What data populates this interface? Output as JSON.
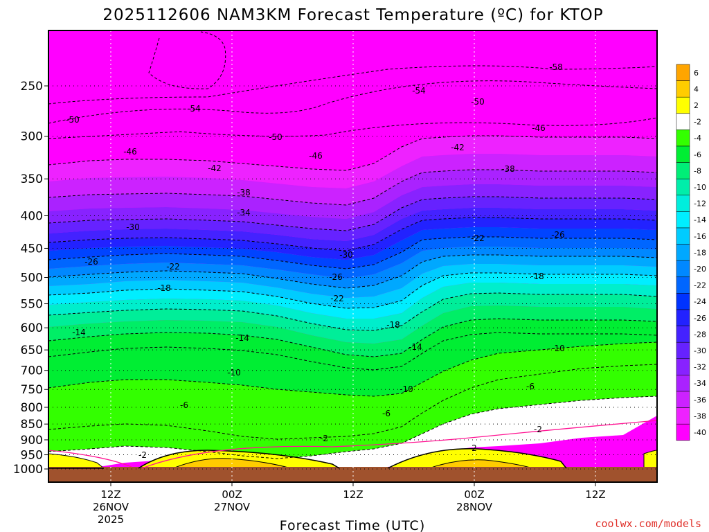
{
  "chart_data": {
    "type": "heatmap",
    "title": "2025112606 NAM3KM Forecast Temperature (ºC) for KTOP",
    "xlabel": "Forecast Time (UTC)",
    "ylabel": "",
    "credit": "coolwx.com/models",
    "y_scale": "log",
    "ylim": [
      1000,
      200
    ],
    "y_ticks": [
      "250",
      "300",
      "350",
      "400",
      "450",
      "500",
      "550",
      "600",
      "650",
      "700",
      "750",
      "800",
      "850",
      "900",
      "950",
      "1000"
    ],
    "x_ticks": [
      {
        "lines": [
          "12Z",
          "26NOV",
          "2025"
        ],
        "hours": 6
      },
      {
        "lines": [
          "00Z",
          "27NOV"
        ],
        "hours": 18
      },
      {
        "lines": [
          "12Z"
        ],
        "hours": 30
      },
      {
        "lines": [
          "00Z",
          "28NOV"
        ],
        "hours": 42
      },
      {
        "lines": [
          "12Z"
        ],
        "hours": 54
      }
    ],
    "xlim": [
      0,
      60
    ],
    "grid": true,
    "colorbar": {
      "placement": "right",
      "levels": [
        "6",
        "4",
        "2",
        "-2",
        "-4",
        "-6",
        "-8",
        "-10",
        "-12",
        "-14",
        "-16",
        "-18",
        "-20",
        "-22",
        "-24",
        "-26",
        "-28",
        "-30",
        "-32",
        "-34",
        "-36",
        "-38",
        "-40"
      ],
      "colors": [
        "#ffa500",
        "#ffcc00",
        "#ffff00",
        "#ffffff",
        "#33ff00",
        "#00ee33",
        "#00ee77",
        "#00eeaa",
        "#00eedd",
        "#00eeff",
        "#00ccff",
        "#00a8ff",
        "#0088ff",
        "#0066ff",
        "#0033ff",
        "#2222ff",
        "#4422ff",
        "#6622ff",
        "#8822ff",
        "#aa22ff",
        "#cc22ff",
        "#ee22ff",
        "#ff00ff"
      ]
    },
    "fill_colors": {
      "magenta": "#ff00ff",
      "ground": "#a0522d",
      "white": "#ffffff",
      "yellow": "#ffff00",
      "gold": "#ffcc00",
      "green1": "#33ff00",
      "green2": "#00ee33",
      "green3": "#00ee66",
      "green4": "#00ee99",
      "teal": "#00eecc",
      "cyan": "#00eeff",
      "sky": "#00ccff",
      "blue1": "#00a8ff",
      "blue2": "#0088ff",
      "blue3": "#0066ff",
      "blue4": "#0044ff",
      "blue5": "#2222ff",
      "violet1": "#4422ff",
      "violet2": "#6622ff",
      "violet3": "#8822ff",
      "violet4": "#aa22ff",
      "violet5": "#cc22ff",
      "violet6": "#ee22ff"
    },
    "contour_labels": [
      "-58",
      "-54",
      "-54",
      "-50",
      "-50",
      "-50",
      "-46",
      "-46",
      "-46",
      "-42",
      "-42",
      "-38",
      "-38",
      "-34",
      "-30",
      "-30",
      "-26",
      "-26",
      "-26",
      "-22",
      "-22",
      "-22",
      "-18",
      "-18",
      "-18",
      "-14",
      "-14",
      "-14",
      "-10",
      "-10",
      "-10",
      "-6",
      "-6",
      "-6",
      "-2",
      "-2",
      "-2",
      "2"
    ]
  }
}
